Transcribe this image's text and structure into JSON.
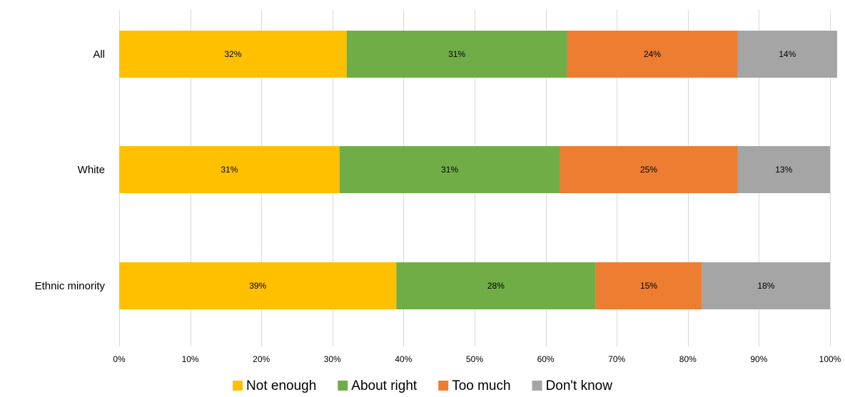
{
  "chart_data": {
    "type": "bar",
    "orientation": "horizontal",
    "stacked": true,
    "categories": [
      "All",
      "White",
      "Ethnic minority"
    ],
    "series": [
      {
        "name": "Not enough",
        "color": "#ffc000",
        "values": [
          32,
          31,
          39
        ],
        "labels": [
          "32%",
          "31%",
          "39%"
        ]
      },
      {
        "name": "About right",
        "color": "#70ad47",
        "values": [
          31,
          31,
          28
        ],
        "labels": [
          "31%",
          "31%",
          "28%"
        ]
      },
      {
        "name": "Too much",
        "color": "#ed7d31",
        "values": [
          24,
          25,
          15
        ],
        "labels": [
          "24%",
          "25%",
          "15%"
        ]
      },
      {
        "name": "Don't know",
        "color": "#a5a5a5",
        "values": [
          14,
          13,
          18
        ],
        "labels": [
          "14%",
          "13%",
          "18%"
        ]
      }
    ],
    "xlim": [
      0,
      100
    ],
    "xticks": [
      0,
      10,
      20,
      30,
      40,
      50,
      60,
      70,
      80,
      90,
      100
    ],
    "xtick_labels": [
      "0%",
      "10%",
      "20%",
      "30%",
      "40%",
      "50%",
      "60%",
      "70%",
      "80%",
      "90%",
      "100%"
    ],
    "grid": true,
    "legend_position": "bottom"
  }
}
